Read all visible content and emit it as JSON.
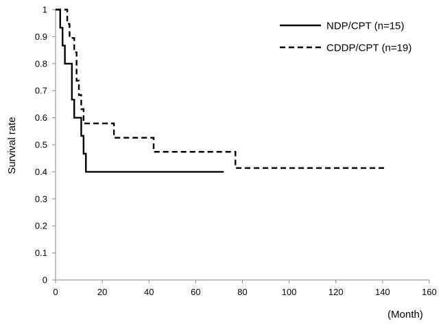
{
  "chart_data": {
    "type": "line",
    "title": "",
    "xlabel": "(Month)",
    "ylabel": "Survival rate",
    "xlim": [
      0,
      160
    ],
    "ylim": [
      0,
      1
    ],
    "x_ticks": [
      0,
      20,
      40,
      60,
      80,
      100,
      120,
      140,
      160
    ],
    "y_ticks": [
      0,
      0.1,
      0.2,
      0.3,
      0.4,
      0.5,
      0.6,
      0.7,
      0.8,
      0.9,
      1
    ],
    "grid": false,
    "legend_position": "top-right",
    "step": true,
    "series": [
      {
        "name": "NDP/CPT (n=15)",
        "line_style": "solid",
        "color": "#000000",
        "x": [
          0,
          2,
          3,
          4,
          7,
          8,
          11,
          12,
          13,
          72
        ],
        "y": [
          1.0,
          0.933,
          0.867,
          0.8,
          0.667,
          0.6,
          0.533,
          0.467,
          0.4,
          0.4
        ]
      },
      {
        "name": "CDDP/CPT (n=19)",
        "line_style": "dashed",
        "color": "#000000",
        "x": [
          0,
          5,
          6,
          8,
          9,
          10,
          11,
          12,
          25,
          42,
          77,
          141
        ],
        "y": [
          1.0,
          0.947,
          0.895,
          0.842,
          0.737,
          0.684,
          0.632,
          0.579,
          0.526,
          0.474,
          0.414,
          0.414
        ]
      }
    ]
  }
}
